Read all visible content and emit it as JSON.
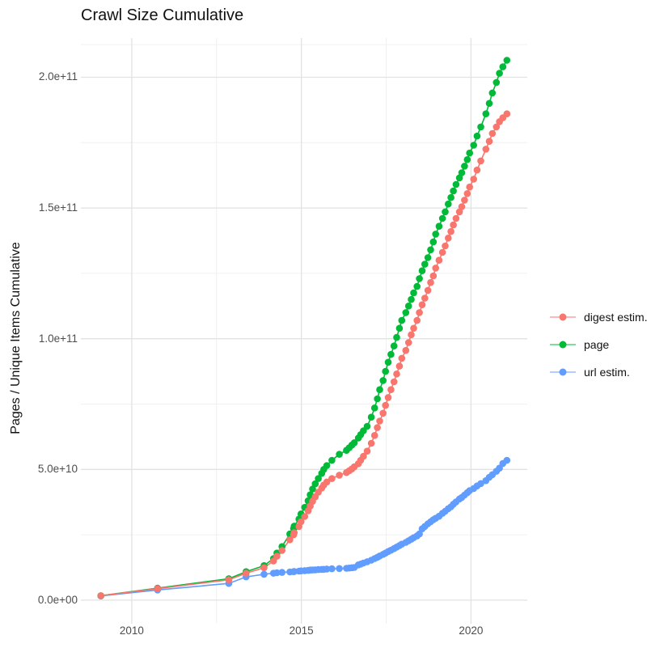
{
  "title": "Crawl Size Cumulative",
  "y_axis": {
    "label": "Pages / Unique Items Cumulative",
    "ticks": [
      {
        "label": "0.0e+00",
        "value_billions": 0
      },
      {
        "label": "5.0e+10",
        "value_billions": 50
      },
      {
        "label": "1.0e+11",
        "value_billions": 100
      },
      {
        "label": "1.5e+11",
        "value_billions": 150
      },
      {
        "label": "2.0e+11",
        "value_billions": 200
      }
    ]
  },
  "x_axis": {
    "ticks": [
      {
        "label": "2010",
        "value": 2010
      },
      {
        "label": "2015",
        "value": 2015
      },
      {
        "label": "2020",
        "value": 2020
      }
    ]
  },
  "legend": {
    "items": [
      {
        "label": "digest estim.",
        "color": "#F8766D"
      },
      {
        "label": "page",
        "color": "#00BA38"
      },
      {
        "label": "url estim.",
        "color": "#619CFF"
      }
    ]
  },
  "colors": {
    "digest": "#F8766D",
    "page": "#00BA38",
    "url": "#619CFF",
    "grid_major": "#e2e2e2",
    "grid_minor": "#f0f0f0",
    "tick_text": "#4d4d4d"
  },
  "chart_data": {
    "type": "line",
    "title": "Crawl Size Cumulative",
    "xlabel": "",
    "ylabel": "Pages / Unique Items Cumulative",
    "xlim": [
      2008.5,
      2021.66
    ],
    "ylim_billions": [
      -9,
      215
    ],
    "legend_position": "right",
    "grid": {
      "x_major": [
        2010,
        2015,
        2020
      ],
      "x_minor": [
        2012.5,
        2017.5
      ],
      "y_major_billions": [
        0,
        50,
        100,
        150,
        200
      ],
      "y_minor_billions": [
        25,
        75,
        125,
        175,
        212.5
      ]
    },
    "x_years": [
      2009.09,
      2010.76,
      2012.86,
      2013.37,
      2013.9,
      2014.18,
      2014.28,
      2014.43,
      2014.66,
      2014.77,
      2014.79,
      2014.93,
      2014.99,
      2015.1,
      2015.2,
      2015.26,
      2015.33,
      2015.41,
      2015.5,
      2015.6,
      2015.66,
      2015.75,
      2015.9,
      2016.12,
      2016.33,
      2016.41,
      2016.49,
      2016.56,
      2016.68,
      2016.75,
      2016.83,
      2016.94,
      2017.06,
      2017.16,
      2017.24,
      2017.31,
      2017.41,
      2017.48,
      2017.56,
      2017.64,
      2017.73,
      2017.81,
      2017.89,
      2017.96,
      2018.08,
      2018.16,
      2018.24,
      2018.31,
      2018.41,
      2018.48,
      2018.56,
      2018.64,
      2018.73,
      2018.81,
      2018.89,
      2018.96,
      2019.06,
      2019.16,
      2019.24,
      2019.33,
      2019.41,
      2019.48,
      2019.56,
      2019.66,
      2019.73,
      2019.81,
      2019.89,
      2019.96,
      2020.08,
      2020.18,
      2020.29,
      2020.44,
      2020.54,
      2020.63,
      2020.75,
      2020.84,
      2020.94,
      2021.06
    ],
    "series": [
      {
        "name": "url estim.",
        "color": "#619CFF",
        "values_billions": [
          1.6,
          3.9,
          6.4,
          8.9,
          9.9,
          10.3,
          10.5,
          10.6,
          10.8,
          10.9,
          11.0,
          11.1,
          11.2,
          11.3,
          11.4,
          11.5,
          11.55,
          11.6,
          11.7,
          11.75,
          11.8,
          11.9,
          12.0,
          12.1,
          12.2,
          12.3,
          12.4,
          12.5,
          13.5,
          13.8,
          14.2,
          14.7,
          15.3,
          15.9,
          16.4,
          16.9,
          17.5,
          18.0,
          18.6,
          19.1,
          19.7,
          20.3,
          20.9,
          21.4,
          22.1,
          22.7,
          23.3,
          23.9,
          24.6,
          25.3,
          27.3,
          28.2,
          29.2,
          30.0,
          30.8,
          31.3,
          32.1,
          33.2,
          34.0,
          35.0,
          35.7,
          36.7,
          37.6,
          38.7,
          39.3,
          40.2,
          41.1,
          41.9,
          42.7,
          43.7,
          44.6,
          45.7,
          47.0,
          48.0,
          49.3,
          50.5,
          52.3,
          53.5
        ]
      },
      {
        "name": "page",
        "color": "#00BA38",
        "values_billions": [
          1.7,
          4.6,
          8.2,
          10.9,
          13.2,
          15.9,
          18.0,
          20.5,
          25.3,
          27.4,
          28.3,
          31.0,
          33.0,
          35.5,
          38.0,
          40.3,
          42.5,
          44.5,
          46.5,
          48.5,
          50.0,
          51.5,
          53.5,
          55.8,
          57.3,
          58.3,
          59.3,
          60.2,
          62.0,
          63.3,
          64.8,
          66.5,
          70.0,
          73.5,
          77.0,
          80.5,
          84.0,
          87.5,
          91.0,
          94.0,
          97.2,
          100.5,
          104.0,
          107.0,
          110.0,
          112.5,
          115.0,
          117.5,
          120.0,
          123.0,
          126.0,
          128.5,
          131.0,
          134.0,
          137.0,
          140.0,
          143.0,
          146.0,
          148.5,
          151.5,
          154.0,
          156.5,
          159.0,
          161.5,
          163.5,
          166.0,
          168.5,
          171.0,
          174.0,
          177.5,
          181.0,
          186.0,
          190.0,
          194.0,
          198.0,
          201.5,
          204.0,
          206.5
        ]
      },
      {
        "name": "digest estim.",
        "color": "#F8766D",
        "values_billions": [
          1.7,
          4.4,
          7.8,
          10.3,
          12.4,
          15.0,
          16.8,
          19.0,
          23.1,
          25.0,
          25.8,
          28.2,
          30.0,
          32.0,
          34.2,
          36.0,
          37.8,
          39.5,
          41.3,
          42.9,
          44.0,
          45.2,
          46.5,
          47.8,
          48.8,
          49.5,
          50.2,
          51.0,
          52.2,
          53.5,
          55.0,
          57.0,
          60.0,
          63.0,
          66.0,
          68.5,
          71.5,
          74.5,
          77.5,
          80.5,
          83.5,
          86.5,
          89.5,
          92.5,
          95.5,
          98.5,
          101.5,
          104.0,
          107.0,
          110.0,
          113.0,
          115.5,
          118.5,
          121.5,
          124.0,
          127.0,
          130.0,
          133.0,
          135.5,
          138.5,
          141.0,
          143.5,
          146.0,
          148.5,
          150.5,
          153.0,
          155.5,
          158.0,
          161.0,
          164.5,
          168.0,
          172.5,
          175.5,
          178.5,
          181.0,
          183.0,
          184.5,
          186.0
        ]
      }
    ]
  }
}
